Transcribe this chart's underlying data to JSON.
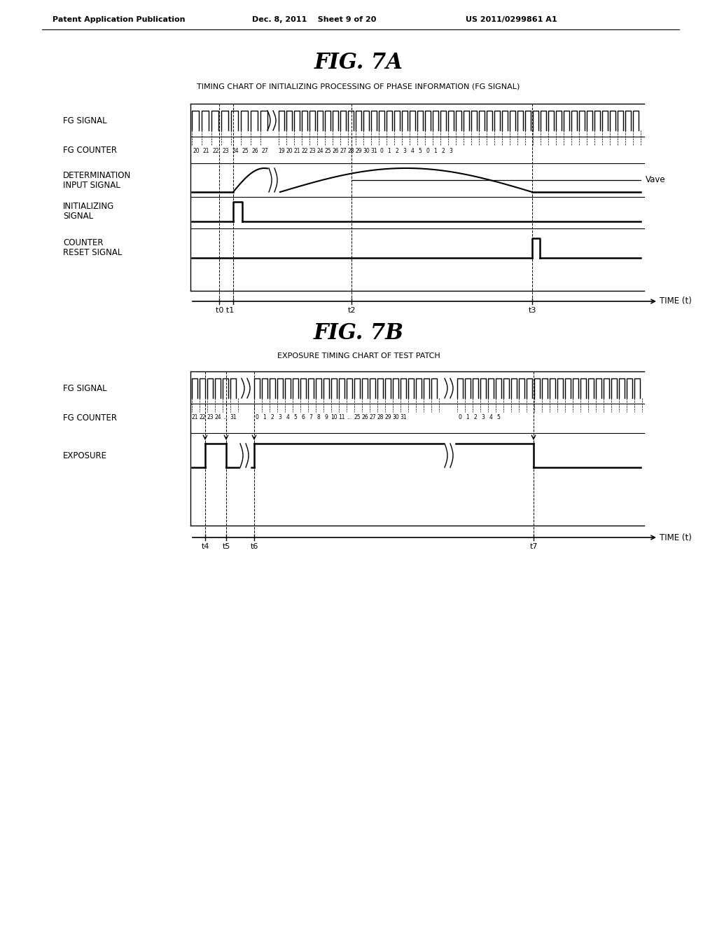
{
  "header_left": "Patent Application Publication",
  "header_mid": "Dec. 8, 2011    Sheet 9 of 20",
  "header_right": "US 2011/0299861 A1",
  "fig7a_title": "FIG. 7A",
  "fig7a_subtitle": "TIMING CHART OF INITIALIZING PROCESSING OF PHASE INFORMATION (FG SIGNAL)",
  "fig7b_title": "FIG. 7B",
  "fig7b_subtitle": "EXPOSURE TIMING CHART OF TEST PATCH",
  "bg_color": "#ffffff"
}
